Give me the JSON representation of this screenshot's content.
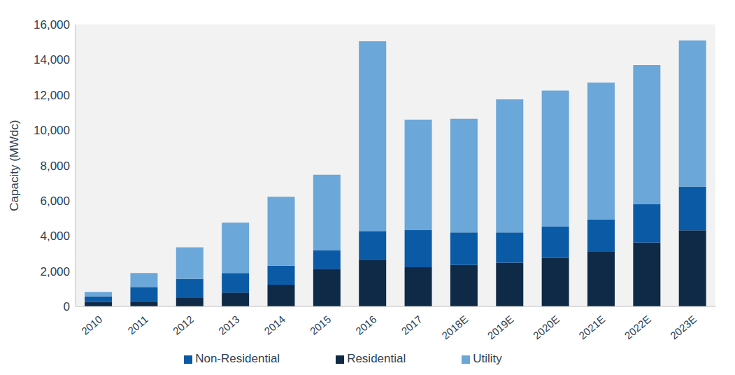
{
  "chart_data": {
    "type": "bar",
    "y_label": "Capacity (MWdc)",
    "categories": [
      "2010",
      "2011",
      "2012",
      "2013",
      "2014",
      "2015",
      "2016",
      "2017",
      "2018E",
      "2019E",
      "2020E",
      "2021E",
      "2022E",
      "2023E"
    ],
    "series": [
      {
        "name": "Residential",
        "color": "#0e2a47",
        "values": [
          250,
          300,
          480,
          780,
          1230,
          2130,
          2620,
          2220,
          2350,
          2480,
          2750,
          3100,
          3620,
          4320
        ]
      },
      {
        "name": "Non-Residential",
        "color": "#0b5aa6",
        "values": [
          330,
          800,
          1080,
          1120,
          1080,
          1070,
          1660,
          2130,
          1850,
          1720,
          1780,
          1840,
          2200,
          2480
        ]
      },
      {
        "name": "Utility",
        "color": "#6ba7d9",
        "values": [
          240,
          800,
          1790,
          2850,
          3910,
          4270,
          10770,
          6250,
          6450,
          7550,
          7720,
          7760,
          7880,
          8300
        ]
      }
    ],
    "ylim": [
      0,
      16000
    ],
    "yticks": [
      0,
      {
        "value": 2000,
        "label": "2,000"
      },
      {
        "value": 4000,
        "label": "4,000"
      },
      {
        "value": 6000,
        "label": "6,000"
      },
      {
        "value": 8000,
        "label": "8,000"
      },
      {
        "value": 10000,
        "label": "10,000"
      },
      {
        "value": 12000,
        "label": "12,000"
      },
      {
        "value": 14000,
        "label": "14,000"
      },
      {
        "value": 16000,
        "label": "16,000"
      }
    ],
    "stacked": true,
    "legend": "bottom",
    "grid": false
  }
}
